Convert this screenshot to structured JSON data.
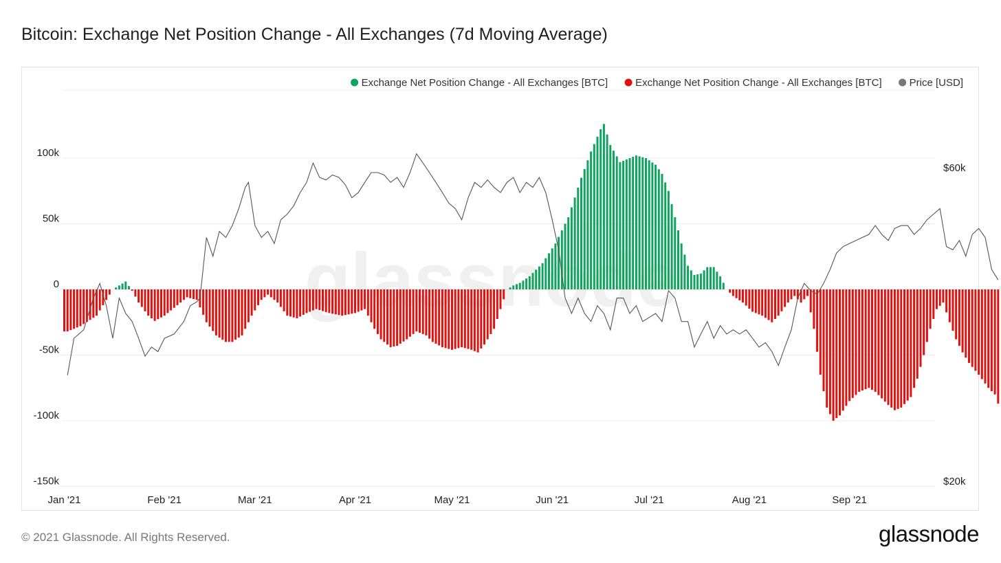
{
  "title": "Bitcoin: Exchange Net Position Change - All Exchanges (7d Moving Average)",
  "footer": {
    "copyright": "© 2021 Glassnode. All Rights Reserved.",
    "brand": "glassnode"
  },
  "watermark": "glassnode",
  "chart_data": {
    "type": "bar",
    "title": "Bitcoin: Exchange Net Position Change - All Exchanges (7d Moving Average)",
    "legend": {
      "placement": "top-right",
      "entries": [
        {
          "label": "Exchange Net Position Change - All Exchanges [BTC]",
          "color": "#0fa35f"
        },
        {
          "label": "Exchange Net Position Change - All Exchanges [BTC]",
          "color": "#e0120f"
        },
        {
          "label": "Price [USD]",
          "color": "#777777"
        }
      ]
    },
    "x_ticks": [
      "Jan '21",
      "Feb '21",
      "Mar '21",
      "Apr '21",
      "May '21",
      "Jun '21",
      "Jul '21",
      "Aug '21",
      "Sep '21"
    ],
    "y_left": {
      "ticks": [
        "100k",
        "50k",
        "0",
        "-50k",
        "-100k",
        "-150k"
      ],
      "tick_values": [
        100000,
        50000,
        0,
        -50000,
        -100000,
        -150000
      ],
      "range": [
        -150000,
        150000
      ]
    },
    "y_right": {
      "ticks": [
        "$60k",
        "$20k"
      ],
      "tick_values": [
        60000,
        20000
      ],
      "scale": "log"
    },
    "grid": true,
    "net_position_anchors": [
      [
        1,
        -32000
      ],
      [
        5,
        -28000
      ],
      [
        10,
        -20000
      ],
      [
        13,
        -8000
      ],
      [
        15,
        0
      ],
      [
        17,
        3000
      ],
      [
        19,
        6000
      ],
      [
        21,
        -1000
      ],
      [
        23,
        -10000
      ],
      [
        26,
        -20000
      ],
      [
        28,
        -24000
      ],
      [
        31,
        -20000
      ],
      [
        35,
        -12000
      ],
      [
        38,
        -6000
      ],
      [
        41,
        -8000
      ],
      [
        44,
        -25000
      ],
      [
        47,
        -35000
      ],
      [
        50,
        -40000
      ],
      [
        52,
        -40000
      ],
      [
        55,
        -35000
      ],
      [
        58,
        -20000
      ],
      [
        61,
        -8000
      ],
      [
        63,
        -4000
      ],
      [
        66,
        -10000
      ],
      [
        69,
        -20000
      ],
      [
        72,
        -22000
      ],
      [
        75,
        -18000
      ],
      [
        78,
        -15000
      ],
      [
        82,
        -18000
      ],
      [
        86,
        -20000
      ],
      [
        90,
        -18000
      ],
      [
        93,
        -15000
      ],
      [
        96,
        -30000
      ],
      [
        98,
        -38000
      ],
      [
        101,
        -44000
      ],
      [
        103,
        -43000
      ],
      [
        106,
        -38000
      ],
      [
        109,
        -32000
      ],
      [
        112,
        -35000
      ],
      [
        114,
        -40000
      ],
      [
        117,
        -44000
      ],
      [
        120,
        -46000
      ],
      [
        123,
        -44000
      ],
      [
        126,
        -46000
      ],
      [
        128,
        -48000
      ],
      [
        130,
        -42000
      ],
      [
        133,
        -30000
      ],
      [
        135,
        -15000
      ],
      [
        137,
        0
      ],
      [
        139,
        3000
      ],
      [
        141,
        5000
      ],
      [
        144,
        10000
      ],
      [
        148,
        20000
      ],
      [
        152,
        35000
      ],
      [
        156,
        55000
      ],
      [
        160,
        85000
      ],
      [
        163,
        105000
      ],
      [
        166,
        122000
      ],
      [
        167,
        126000
      ],
      [
        169,
        110000
      ],
      [
        172,
        97000
      ],
      [
        175,
        100000
      ],
      [
        177,
        102000
      ],
      [
        180,
        100000
      ],
      [
        183,
        95000
      ],
      [
        185,
        88000
      ],
      [
        187,
        75000
      ],
      [
        189,
        55000
      ],
      [
        191,
        35000
      ],
      [
        193,
        18000
      ],
      [
        195,
        11000
      ],
      [
        197,
        12000
      ],
      [
        199,
        17000
      ],
      [
        201,
        17000
      ],
      [
        203,
        10000
      ],
      [
        205,
        0
      ],
      [
        207,
        -5000
      ],
      [
        210,
        -10000
      ],
      [
        213,
        -17000
      ],
      [
        216,
        -20000
      ],
      [
        219,
        -25000
      ],
      [
        221,
        -20000
      ],
      [
        224,
        -10000
      ],
      [
        226,
        -5000
      ],
      [
        228,
        -10000
      ],
      [
        230,
        -5000
      ],
      [
        232,
        -30000
      ],
      [
        234,
        -65000
      ],
      [
        236,
        -90000
      ],
      [
        238,
        -100000
      ],
      [
        240,
        -96000
      ],
      [
        243,
        -85000
      ],
      [
        246,
        -78000
      ],
      [
        249,
        -75000
      ],
      [
        251,
        -78000
      ],
      [
        253,
        -83000
      ],
      [
        255,
        -88000
      ],
      [
        257,
        -92000
      ],
      [
        259,
        -90000
      ],
      [
        262,
        -82000
      ],
      [
        264,
        -68000
      ],
      [
        266,
        -50000
      ],
      [
        268,
        -30000
      ],
      [
        270,
        -15000
      ],
      [
        272,
        -10000
      ],
      [
        274,
        -25000
      ],
      [
        276,
        -38000
      ],
      [
        278,
        -48000
      ],
      [
        280,
        -56000
      ],
      [
        283,
        -65000
      ],
      [
        286,
        -75000
      ],
      [
        288,
        -80000
      ],
      [
        289,
        -87000
      ]
    ],
    "price_anchors": [
      [
        1,
        29000
      ],
      [
        3,
        33000
      ],
      [
        6,
        34000
      ],
      [
        9,
        38000
      ],
      [
        11,
        40000
      ],
      [
        13,
        37000
      ],
      [
        15,
        33000
      ],
      [
        17,
        38000
      ],
      [
        19,
        36000
      ],
      [
        21,
        35000
      ],
      [
        23,
        33000
      ],
      [
        25,
        31000
      ],
      [
        27,
        32000
      ],
      [
        29,
        31500
      ],
      [
        31,
        33000
      ],
      [
        34,
        33500
      ],
      [
        37,
        35000
      ],
      [
        39,
        37000
      ],
      [
        41,
        37500
      ],
      [
        42,
        38000
      ],
      [
        44,
        47000
      ],
      [
        46,
        44000
      ],
      [
        48,
        48000
      ],
      [
        50,
        47000
      ],
      [
        52,
        49000
      ],
      [
        54,
        52000
      ],
      [
        56,
        56000
      ],
      [
        57,
        57000
      ],
      [
        59,
        49000
      ],
      [
        61,
        47000
      ],
      [
        63,
        48000
      ],
      [
        65,
        46000
      ],
      [
        67,
        50000
      ],
      [
        69,
        51000
      ],
      [
        71,
        52500
      ],
      [
        73,
        55000
      ],
      [
        75,
        57000
      ],
      [
        77,
        61000
      ],
      [
        79,
        58000
      ],
      [
        81,
        57500
      ],
      [
        83,
        58500
      ],
      [
        85,
        58000
      ],
      [
        87,
        56500
      ],
      [
        89,
        54000
      ],
      [
        91,
        55000
      ],
      [
        93,
        57000
      ],
      [
        95,
        59000
      ],
      [
        97,
        59000
      ],
      [
        99,
        58500
      ],
      [
        101,
        57000
      ],
      [
        103,
        58000
      ],
      [
        105,
        56000
      ],
      [
        107,
        59000
      ],
      [
        109,
        63000
      ],
      [
        111,
        61000
      ],
      [
        113,
        59000
      ],
      [
        115,
        57000
      ],
      [
        117,
        55000
      ],
      [
        119,
        53000
      ],
      [
        121,
        52000
      ],
      [
        123,
        50000
      ],
      [
        125,
        54000
      ],
      [
        127,
        57000
      ],
      [
        129,
        56000
      ],
      [
        131,
        57500
      ],
      [
        133,
        56000
      ],
      [
        135,
        55000
      ],
      [
        137,
        57000
      ],
      [
        139,
        58000
      ],
      [
        141,
        55000
      ],
      [
        143,
        57000
      ],
      [
        145,
        56000
      ],
      [
        147,
        58000
      ],
      [
        149,
        55000
      ],
      [
        151,
        50000
      ],
      [
        153,
        45000
      ],
      [
        155,
        38000
      ],
      [
        157,
        36000
      ],
      [
        159,
        38000
      ],
      [
        161,
        36000
      ],
      [
        163,
        35000
      ],
      [
        165,
        37000
      ],
      [
        167,
        36000
      ],
      [
        169,
        34000
      ],
      [
        171,
        38000
      ],
      [
        173,
        38000
      ],
      [
        175,
        36000
      ],
      [
        177,
        37000
      ],
      [
        179,
        35000
      ],
      [
        181,
        35500
      ],
      [
        183,
        36000
      ],
      [
        185,
        35000
      ],
      [
        187,
        39000
      ],
      [
        189,
        38000
      ],
      [
        191,
        35000
      ],
      [
        193,
        35000
      ],
      [
        195,
        32000
      ],
      [
        197,
        33500
      ],
      [
        199,
        35000
      ],
      [
        201,
        33000
      ],
      [
        203,
        34500
      ],
      [
        205,
        33500
      ],
      [
        207,
        34000
      ],
      [
        209,
        33500
      ],
      [
        211,
        34000
      ],
      [
        213,
        33000
      ],
      [
        215,
        32000
      ],
      [
        217,
        32500
      ],
      [
        219,
        31500
      ],
      [
        221,
        30000
      ],
      [
        223,
        32000
      ],
      [
        225,
        34000
      ],
      [
        227,
        38000
      ],
      [
        229,
        40000
      ],
      [
        231,
        39000
      ],
      [
        233,
        38500
      ],
      [
        235,
        40000
      ],
      [
        237,
        42000
      ],
      [
        239,
        44500
      ],
      [
        241,
        45500
      ],
      [
        243,
        46000
      ],
      [
        245,
        46500
      ],
      [
        247,
        47000
      ],
      [
        249,
        47500
      ],
      [
        251,
        49000
      ],
      [
        253,
        47500
      ],
      [
        255,
        46500
      ],
      [
        257,
        48500
      ],
      [
        259,
        49000
      ],
      [
        261,
        49000
      ],
      [
        263,
        47500
      ],
      [
        265,
        48500
      ],
      [
        267,
        50000
      ],
      [
        269,
        51000
      ],
      [
        271,
        52000
      ],
      [
        273,
        45500
      ],
      [
        275,
        45000
      ],
      [
        277,
        46500
      ],
      [
        279,
        44000
      ],
      [
        281,
        47500
      ],
      [
        283,
        48500
      ],
      [
        285,
        47000
      ],
      [
        287,
        42000
      ],
      [
        289,
        40500
      ]
    ]
  }
}
